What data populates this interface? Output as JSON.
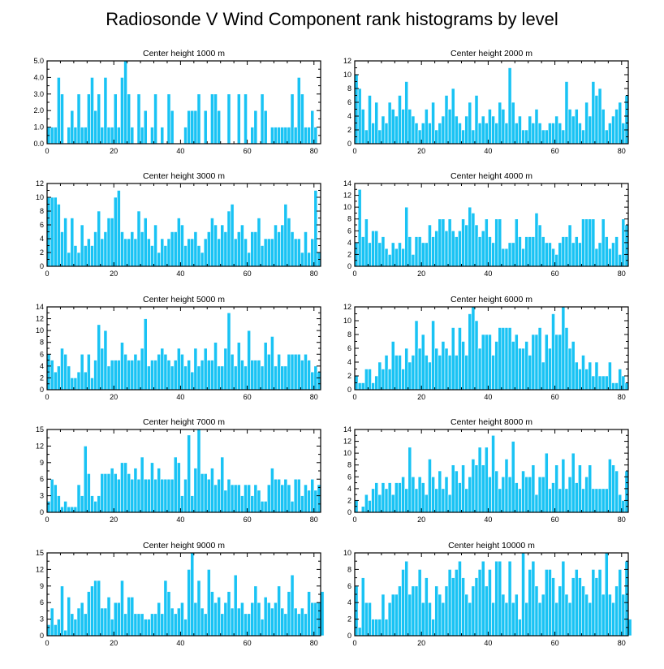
{
  "figure": {
    "title": "Radiosonde V Wind Component rank histograms by level"
  },
  "colors": {
    "bar": "#19c3f4",
    "axis": "#000000"
  },
  "chart_data": [
    {
      "type": "bar",
      "title": "Center height 1000 m",
      "xlim": [
        0,
        82
      ],
      "ylim": [
        0,
        5
      ],
      "xticks": [
        0,
        20,
        40,
        60,
        80
      ],
      "yticks": [
        0,
        1,
        2,
        3,
        4,
        5
      ],
      "ytick_labels": [
        "0.0",
        "1.0",
        "2.0",
        "3.0",
        "4.0",
        "5.0"
      ],
      "values": [
        1,
        1,
        1,
        4,
        3,
        0,
        1,
        2,
        1,
        3,
        1,
        1,
        3,
        4,
        2,
        3,
        1,
        4,
        1,
        1,
        3,
        1,
        4,
        5,
        3,
        1,
        0,
        3,
        1,
        2,
        0,
        1,
        3,
        0,
        1,
        0,
        3,
        2,
        0,
        0,
        0,
        1,
        2,
        2,
        2,
        3,
        0,
        2,
        0,
        3,
        3,
        2,
        0,
        0,
        3,
        0,
        0,
        3,
        0,
        3,
        0,
        1,
        2,
        0,
        3,
        2,
        0,
        1,
        1,
        1,
        1,
        1,
        1,
        3,
        1,
        4,
        3,
        1,
        1,
        2,
        1
      ]
    },
    {
      "type": "bar",
      "title": "Center height 2000 m",
      "xlim": [
        0,
        82
      ],
      "ylim": [
        0,
        12
      ],
      "xticks": [
        0,
        20,
        40,
        60,
        80
      ],
      "yticks": [
        0,
        2,
        4,
        6,
        8,
        10,
        12
      ],
      "values": [
        10,
        8,
        5,
        2,
        7,
        3,
        6,
        2,
        4,
        3,
        6,
        5,
        4,
        7,
        5,
        9,
        5,
        4,
        3,
        2,
        3,
        5,
        3,
        6,
        2,
        3,
        4,
        7,
        5,
        8,
        4,
        3,
        2,
        4,
        6,
        2,
        7,
        3,
        4,
        3,
        5,
        4,
        3,
        6,
        5,
        3,
        11,
        6,
        3,
        4,
        2,
        2,
        4,
        3,
        5,
        3,
        2,
        2,
        3,
        3,
        4,
        3,
        2,
        9,
        5,
        4,
        5,
        3,
        2,
        6,
        4,
        9,
        7,
        8,
        5,
        2,
        3,
        4,
        5,
        6,
        3,
        7
      ]
    },
    {
      "type": "bar",
      "title": "Center height 3000 m",
      "xlim": [
        0,
        82
      ],
      "ylim": [
        0,
        12
      ],
      "xticks": [
        0,
        20,
        40,
        60,
        80
      ],
      "yticks": [
        0,
        2,
        4,
        6,
        8,
        10,
        12
      ],
      "values": [
        10,
        10,
        10,
        9,
        5,
        7,
        2,
        7,
        3,
        2,
        6,
        3,
        4,
        3,
        5,
        8,
        4,
        5,
        7,
        7,
        10,
        11,
        5,
        4,
        4,
        5,
        4,
        8,
        5,
        7,
        4,
        3,
        6,
        2,
        4,
        3,
        4,
        5,
        5,
        7,
        6,
        3,
        4,
        4,
        5,
        3,
        2,
        4,
        5,
        7,
        6,
        4,
        6,
        5,
        8,
        9,
        4,
        5,
        6,
        4,
        2,
        5,
        5,
        7,
        3,
        4,
        4,
        4,
        6,
        5,
        6,
        9,
        7,
        5,
        4,
        4,
        2,
        5,
        2,
        4,
        11,
        2
      ]
    },
    {
      "type": "bar",
      "title": "Center height 4000 m",
      "xlim": [
        0,
        82
      ],
      "ylim": [
        0,
        14
      ],
      "xticks": [
        0,
        20,
        40,
        60,
        80
      ],
      "yticks": [
        0,
        2,
        4,
        6,
        8,
        10,
        12,
        14
      ],
      "values": [
        4,
        13,
        5,
        8,
        4,
        6,
        6,
        4,
        5,
        3,
        2,
        4,
        3,
        4,
        3,
        10,
        5,
        2,
        5,
        5,
        4,
        4,
        7,
        5,
        6,
        8,
        8,
        6,
        8,
        6,
        5,
        6,
        8,
        7,
        10,
        9,
        7,
        5,
        6,
        8,
        5,
        4,
        8,
        8,
        3,
        3,
        4,
        4,
        8,
        5,
        3,
        5,
        5,
        5,
        9,
        7,
        5,
        4,
        4,
        3,
        2,
        4,
        5,
        5,
        7,
        4,
        5,
        4,
        8,
        8,
        8,
        8,
        3,
        4,
        8,
        5,
        3,
        4,
        5,
        2,
        8,
        7
      ]
    },
    {
      "type": "bar",
      "title": "Center height 5000 m",
      "xlim": [
        0,
        82
      ],
      "ylim": [
        0,
        14
      ],
      "xticks": [
        0,
        20,
        40,
        60,
        80
      ],
      "yticks": [
        0,
        2,
        4,
        6,
        8,
        10,
        12,
        14
      ],
      "values": [
        6,
        5,
        3,
        4,
        7,
        6,
        4,
        2,
        2,
        3,
        6,
        3,
        6,
        2,
        5,
        11,
        7,
        10,
        4,
        5,
        5,
        5,
        8,
        6,
        5,
        5,
        6,
        5,
        7,
        12,
        4,
        5,
        5,
        6,
        7,
        6,
        5,
        4,
        5,
        7,
        6,
        4,
        5,
        3,
        7,
        4,
        5,
        7,
        5,
        5,
        8,
        4,
        4,
        7,
        13,
        6,
        4,
        8,
        5,
        4,
        10,
        5,
        5,
        5,
        4,
        8,
        6,
        9,
        4,
        6,
        4,
        4,
        6,
        6,
        6,
        6,
        5,
        6,
        5,
        3,
        4,
        3
      ]
    },
    {
      "type": "bar",
      "title": "Center height 6000 m",
      "xlim": [
        0,
        82
      ],
      "ylim": [
        0,
        12
      ],
      "xticks": [
        0,
        20,
        40,
        60,
        80
      ],
      "yticks": [
        0,
        2,
        4,
        6,
        8,
        10,
        12
      ],
      "values": [
        2,
        1,
        1,
        3,
        3,
        1,
        2,
        4,
        3,
        5,
        3,
        7,
        5,
        5,
        3,
        6,
        4,
        5,
        10,
        6,
        8,
        5,
        4,
        10,
        6,
        5,
        7,
        6,
        5,
        9,
        5,
        9,
        7,
        5,
        11,
        12,
        10,
        6,
        8,
        8,
        8,
        5,
        7,
        9,
        9,
        9,
        9,
        7,
        8,
        6,
        6,
        7,
        5,
        8,
        8,
        9,
        4,
        8,
        6,
        11,
        8,
        8,
        12,
        9,
        6,
        7,
        4,
        3,
        5,
        3,
        4,
        2,
        4,
        2,
        2,
        2,
        4,
        1,
        1,
        3,
        2,
        1
      ]
    },
    {
      "type": "bar",
      "title": "Center height 7000 m",
      "xlim": [
        0,
        82
      ],
      "ylim": [
        0,
        15
      ],
      "xticks": [
        0,
        20,
        40,
        60,
        80
      ],
      "yticks": [
        0,
        3,
        6,
        9,
        12,
        15
      ],
      "values": [
        2,
        6,
        5,
        3,
        1,
        2,
        1,
        1,
        1,
        5,
        3,
        12,
        7,
        3,
        2,
        3,
        7,
        7,
        7,
        8,
        7,
        6,
        9,
        9,
        7,
        6,
        8,
        6,
        10,
        6,
        6,
        9,
        6,
        8,
        6,
        6,
        6,
        6,
        10,
        9,
        3,
        6,
        14,
        3,
        8,
        15,
        7,
        7,
        6,
        8,
        5,
        6,
        10,
        4,
        6,
        5,
        5,
        5,
        3,
        5,
        5,
        3,
        5,
        4,
        2,
        2,
        5,
        8,
        6,
        6,
        5,
        6,
        5,
        2,
        6,
        6,
        3,
        5,
        4,
        6,
        4,
        5
      ]
    },
    {
      "type": "bar",
      "title": "Center height 8000 m",
      "xlim": [
        0,
        82
      ],
      "ylim": [
        0,
        14
      ],
      "xticks": [
        0,
        20,
        40,
        60,
        80
      ],
      "yticks": [
        0,
        2,
        4,
        6,
        8,
        10,
        12,
        14
      ],
      "values": [
        2,
        0,
        1,
        3,
        2,
        4,
        5,
        3,
        5,
        4,
        5,
        3,
        5,
        5,
        6,
        4,
        11,
        6,
        4,
        6,
        5,
        3,
        9,
        6,
        4,
        7,
        4,
        6,
        3,
        8,
        7,
        5,
        8,
        4,
        6,
        9,
        8,
        11,
        8,
        11,
        6,
        13,
        7,
        4,
        6,
        9,
        6,
        12,
        5,
        4,
        7,
        6,
        6,
        8,
        3,
        6,
        6,
        10,
        4,
        5,
        8,
        4,
        9,
        4,
        6,
        10,
        5,
        8,
        4,
        6,
        8,
        4,
        4,
        4,
        4,
        4,
        9,
        8,
        7,
        3,
        2,
        7
      ]
    },
    {
      "type": "bar",
      "title": "Center height 9000 m",
      "xlim": [
        0,
        82
      ],
      "ylim": [
        0,
        15
      ],
      "xticks": [
        0,
        20,
        40,
        60,
        80
      ],
      "yticks": [
        0,
        3,
        6,
        9,
        12,
        15
      ],
      "values": [
        2,
        5,
        2,
        3,
        9,
        1,
        7,
        4,
        3,
        5,
        6,
        4,
        8,
        9,
        10,
        10,
        5,
        5,
        7,
        3,
        6,
        6,
        10,
        4,
        7,
        7,
        4,
        4,
        4,
        3,
        3,
        4,
        4,
        6,
        4,
        10,
        8,
        5,
        4,
        5,
        6,
        3,
        12,
        15,
        6,
        10,
        5,
        4,
        12,
        8,
        6,
        7,
        4,
        6,
        8,
        5,
        11,
        5,
        6,
        4,
        4,
        6,
        9,
        6,
        3,
        7,
        6,
        5,
        6,
        9,
        5,
        4,
        8,
        11,
        5,
        4,
        5,
        4,
        8,
        6,
        6,
        6,
        8
      ]
    },
    {
      "type": "bar",
      "title": "Center height 10000 m",
      "xlim": [
        0,
        82
      ],
      "ylim": [
        0,
        10
      ],
      "xticks": [
        0,
        20,
        40,
        60,
        80
      ],
      "yticks": [
        0,
        2,
        4,
        6,
        8,
        10
      ],
      "values": [
        6,
        1,
        7,
        4,
        4,
        2,
        2,
        2,
        5,
        2,
        4,
        5,
        5,
        6,
        8,
        9,
        5,
        6,
        6,
        8,
        4,
        7,
        4,
        2,
        6,
        5,
        4,
        6,
        8,
        7,
        8,
        9,
        7,
        5,
        4,
        6,
        7,
        8,
        9,
        6,
        8,
        4,
        9,
        9,
        5,
        4,
        9,
        4,
        5,
        2,
        10,
        4,
        8,
        9,
        6,
        4,
        5,
        8,
        8,
        7,
        4,
        6,
        9,
        5,
        4,
        7,
        8,
        7,
        6,
        5,
        4,
        8,
        7,
        8,
        5,
        10,
        5,
        4,
        6,
        8,
        5,
        9,
        2
      ]
    }
  ]
}
